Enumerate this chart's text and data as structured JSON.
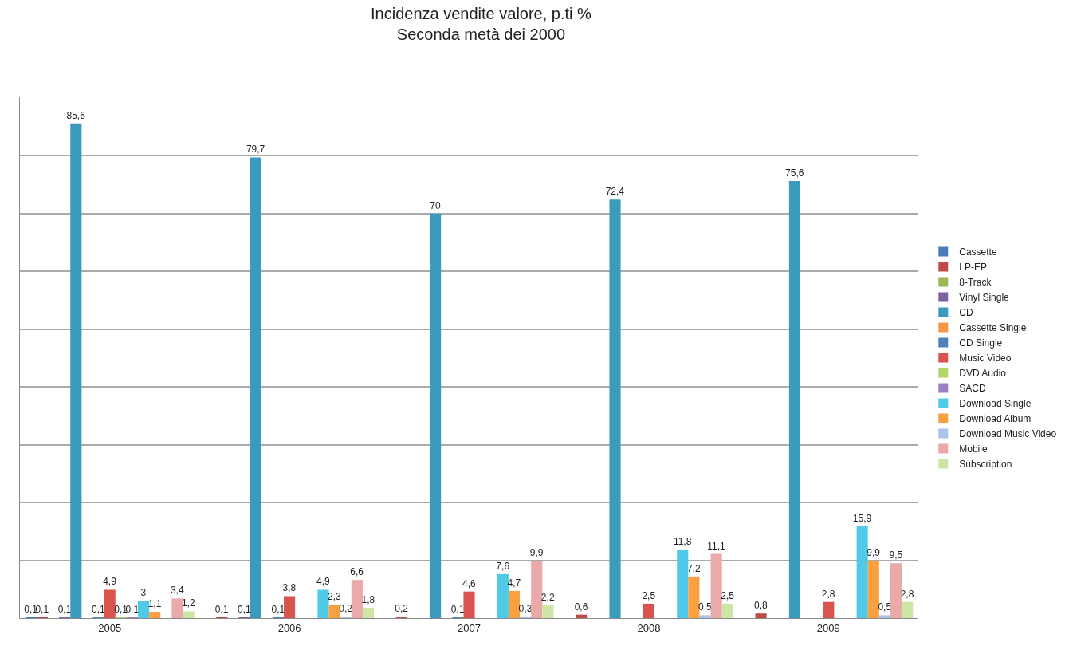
{
  "chart_data": {
    "type": "bar",
    "title": "Incidenza vendite valore, p.ti %\nSeconda metà dei 2000",
    "categories": [
      "2005",
      "2006",
      "2007",
      "2008",
      "2009"
    ],
    "grid": "y",
    "legend": "right",
    "tick_labels": "x",
    "series": [
      {
        "name": "Cassette",
        "color": "#4a7ebb",
        "values": [
          0.1,
          null,
          null,
          null,
          null
        ],
        "value_labels": [
          "0,1",
          null,
          null,
          null,
          null
        ]
      },
      {
        "name": "LP-EP",
        "color": "#be4b48",
        "values": [
          0.1,
          0.1,
          0.2,
          0.6,
          0.8
        ],
        "value_labels": [
          "0,1",
          "0,1",
          "0,2",
          "0,6",
          "0,8"
        ]
      },
      {
        "name": "8-Track",
        "color": "#98b954",
        "values": [
          null,
          null,
          null,
          null,
          null
        ],
        "value_labels": [
          null,
          null,
          null,
          null,
          null
        ]
      },
      {
        "name": "Vinyl Single",
        "color": "#7d60a0",
        "values": [
          0.1,
          0.1,
          null,
          null,
          null
        ],
        "value_labels": [
          "0,1",
          "0,1",
          null,
          null,
          null
        ]
      },
      {
        "name": "CD",
        "color": "#3a9bbd",
        "values": [
          85.6,
          79.7,
          70,
          72.4,
          75.6
        ],
        "value_labels": [
          "85,6",
          "79,7",
          "70",
          "72,4",
          "75,6"
        ]
      },
      {
        "name": "Cassette Single",
        "color": "#f79646",
        "values": [
          null,
          null,
          null,
          null,
          null
        ],
        "value_labels": [
          null,
          null,
          null,
          null,
          null
        ]
      },
      {
        "name": "CD Single",
        "color": "#4f81bd",
        "values": [
          0.1,
          0.1,
          0.1,
          null,
          null
        ],
        "value_labels": [
          "0,1",
          "0,1",
          "0,1",
          null,
          null
        ]
      },
      {
        "name": "Music Video",
        "color": "#d9534f",
        "values": [
          4.9,
          3.8,
          4.6,
          2.5,
          2.8
        ],
        "value_labels": [
          "4,9",
          "3,8",
          "4,6",
          "2,5",
          "2,8"
        ]
      },
      {
        "name": "DVD Audio",
        "color": "#b3d66b",
        "values": [
          0.1,
          null,
          null,
          null,
          null
        ],
        "value_labels": [
          "0,1",
          null,
          null,
          null,
          null
        ]
      },
      {
        "name": "SACD",
        "color": "#9a7fc0",
        "values": [
          0.1,
          null,
          null,
          null,
          null
        ],
        "value_labels": [
          "0,1",
          null,
          null,
          null,
          null
        ]
      },
      {
        "name": "Download Single",
        "color": "#4fcbe8",
        "values": [
          3,
          4.9,
          7.6,
          11.8,
          15.9
        ],
        "value_labels": [
          "3",
          "4,9",
          "7,6",
          "11,8",
          "15,9"
        ]
      },
      {
        "name": "Download Album",
        "color": "#f9a040",
        "values": [
          1.1,
          2.3,
          4.7,
          7.2,
          9.9
        ],
        "value_labels": [
          "1,1",
          "2,3",
          "4,7",
          "7,2",
          "9,9"
        ]
      },
      {
        "name": "Download Music Video",
        "color": "#a9c4eb",
        "values": [
          null,
          0.2,
          0.3,
          0.5,
          0.5
        ],
        "value_labels": [
          null,
          "0,2",
          "0,3",
          "0,5",
          "0,5"
        ]
      },
      {
        "name": "Mobile",
        "color": "#eaaaaa",
        "values": [
          3.4,
          6.6,
          9.9,
          11.1,
          9.5
        ],
        "value_labels": [
          "3,4",
          "6,6",
          "9,9",
          "11,1",
          "9,5"
        ]
      },
      {
        "name": "Subscription",
        "color": "#cde6a6",
        "values": [
          1.2,
          1.8,
          2.2,
          2.5,
          2.8
        ],
        "value_labels": [
          "1,2",
          "1,8",
          "2,2",
          "2,5",
          "2,8"
        ]
      }
    ]
  }
}
